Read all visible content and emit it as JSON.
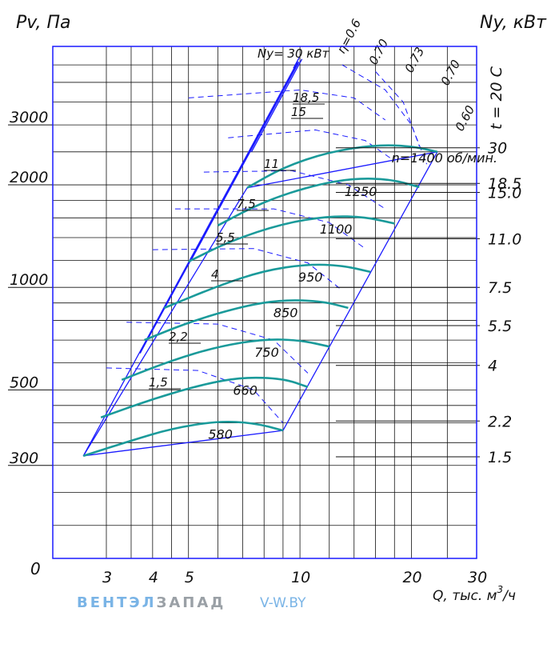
{
  "chart_data": {
    "type": "line",
    "title": "",
    "y_left_title": "Pv, Па",
    "y_right_title": "Ny, кВт",
    "x_title": "Q, тыс. м³/ч",
    "x_scale": "log",
    "y_scale": "log",
    "x_range": [
      2.15,
      30
    ],
    "y_range": [
      160,
      5100
    ],
    "grid": true,
    "x_ticks": [
      {
        "value": 3,
        "label": "3"
      },
      {
        "value": 4,
        "label": "4"
      },
      {
        "value": 5,
        "label": "5"
      },
      {
        "value": 10,
        "label": "10"
      },
      {
        "value": 20,
        "label": "20"
      },
      {
        "value": 30,
        "label": "30"
      }
    ],
    "x_origin_label": "0",
    "y_ticks": [
      {
        "value": 300,
        "label": "300"
      },
      {
        "value": 500,
        "label": "500"
      },
      {
        "value": 1000,
        "label": "1000"
      },
      {
        "value": 2000,
        "label": "2000"
      },
      {
        "value": 3000,
        "label": "3000"
      }
    ],
    "power_ticks": [
      {
        "value": 1.5,
        "label": "1.5",
        "y": 318
      },
      {
        "value": 2.2,
        "label": "2.2",
        "y": 405
      },
      {
        "value": 4,
        "label": "4",
        "y": 590
      },
      {
        "value": 5.5,
        "label": "5.5",
        "y": 772
      },
      {
        "value": 7.5,
        "label": "7.5",
        "y": 1000
      },
      {
        "value": 11.0,
        "label": "11.0",
        "y": 1390
      },
      {
        "value": 15.0,
        "label": "15.0",
        "y": 1900
      },
      {
        "value": 18.5,
        "label": "18.5",
        "y": 2020
      },
      {
        "value": 30,
        "label": "30",
        "y": 2570
      }
    ],
    "temperature_label": "t = 20 C",
    "power_series_prefix": "Ny= 30 кВт",
    "speed_curves": [
      {
        "label": "n=1400 об/мин.",
        "points": [
          [
            7.2,
            1960
          ],
          [
            9.0,
            2250
          ],
          [
            12,
            2500
          ],
          [
            16,
            2620
          ],
          [
            20,
            2600
          ],
          [
            23.5,
            2500
          ]
        ]
      },
      {
        "label": "1250",
        "points": [
          [
            6.0,
            1520
          ],
          [
            8.0,
            1790
          ],
          [
            11,
            2000
          ],
          [
            14,
            2090
          ],
          [
            17.5,
            2080
          ],
          [
            21,
            1970
          ]
        ]
      },
      {
        "label": "1100",
        "points": [
          [
            5.0,
            1190
          ],
          [
            6.5,
            1370
          ],
          [
            9.0,
            1540
          ],
          [
            12,
            1620
          ],
          [
            15,
            1610
          ],
          [
            18,
            1540
          ]
        ]
      },
      {
        "label": "950",
        "points": [
          [
            4.3,
            870
          ],
          [
            6.0,
            1010
          ],
          [
            8.0,
            1120
          ],
          [
            10.5,
            1170
          ],
          [
            13,
            1160
          ],
          [
            15.5,
            1110
          ]
        ]
      },
      {
        "label": "850",
        "points": [
          [
            3.8,
            700
          ],
          [
            5.0,
            790
          ],
          [
            7.0,
            880
          ],
          [
            9.0,
            920
          ],
          [
            11.5,
            910
          ],
          [
            13.5,
            870
          ]
        ]
      },
      {
        "label": "750",
        "points": [
          [
            3.3,
            535
          ],
          [
            4.5,
            610
          ],
          [
            6.0,
            670
          ],
          [
            8.0,
            705
          ],
          [
            10,
            700
          ],
          [
            12,
            670
          ]
        ]
      },
      {
        "label": "660",
        "points": [
          [
            2.9,
            415
          ],
          [
            4.0,
            470
          ],
          [
            5.5,
            520
          ],
          [
            7.0,
            545
          ],
          [
            9.0,
            540
          ],
          [
            10.5,
            510
          ]
        ]
      },
      {
        "label": "580",
        "points": [
          [
            2.6,
            320
          ],
          [
            3.5,
            355
          ],
          [
            4.5,
            385
          ],
          [
            6.0,
            405
          ],
          [
            7.5,
            400
          ],
          [
            9.0,
            380
          ]
        ]
      }
    ],
    "efficiency_labels": [
      "η=0.6",
      "0.70",
      "0.73",
      "0.70",
      "0.60"
    ],
    "power_curve_labels": [
      "Ny= 30 кВт",
      "18,5",
      "15",
      "11",
      "7,5",
      "5,5",
      "4",
      "2,2",
      "1,5"
    ],
    "colors": {
      "axis": "#1a1aff",
      "curves": "#1a9a9a",
      "grid": "#111111",
      "text": "#111111"
    }
  },
  "watermark": {
    "part1": "ВЕНТЭЛ",
    "part2": "ЗАПАД",
    "site": "V-W.BY",
    "colors": {
      "part1": "#7ab4e6",
      "part2": "#9aa0a6",
      "site": "#7ab4e6"
    }
  }
}
